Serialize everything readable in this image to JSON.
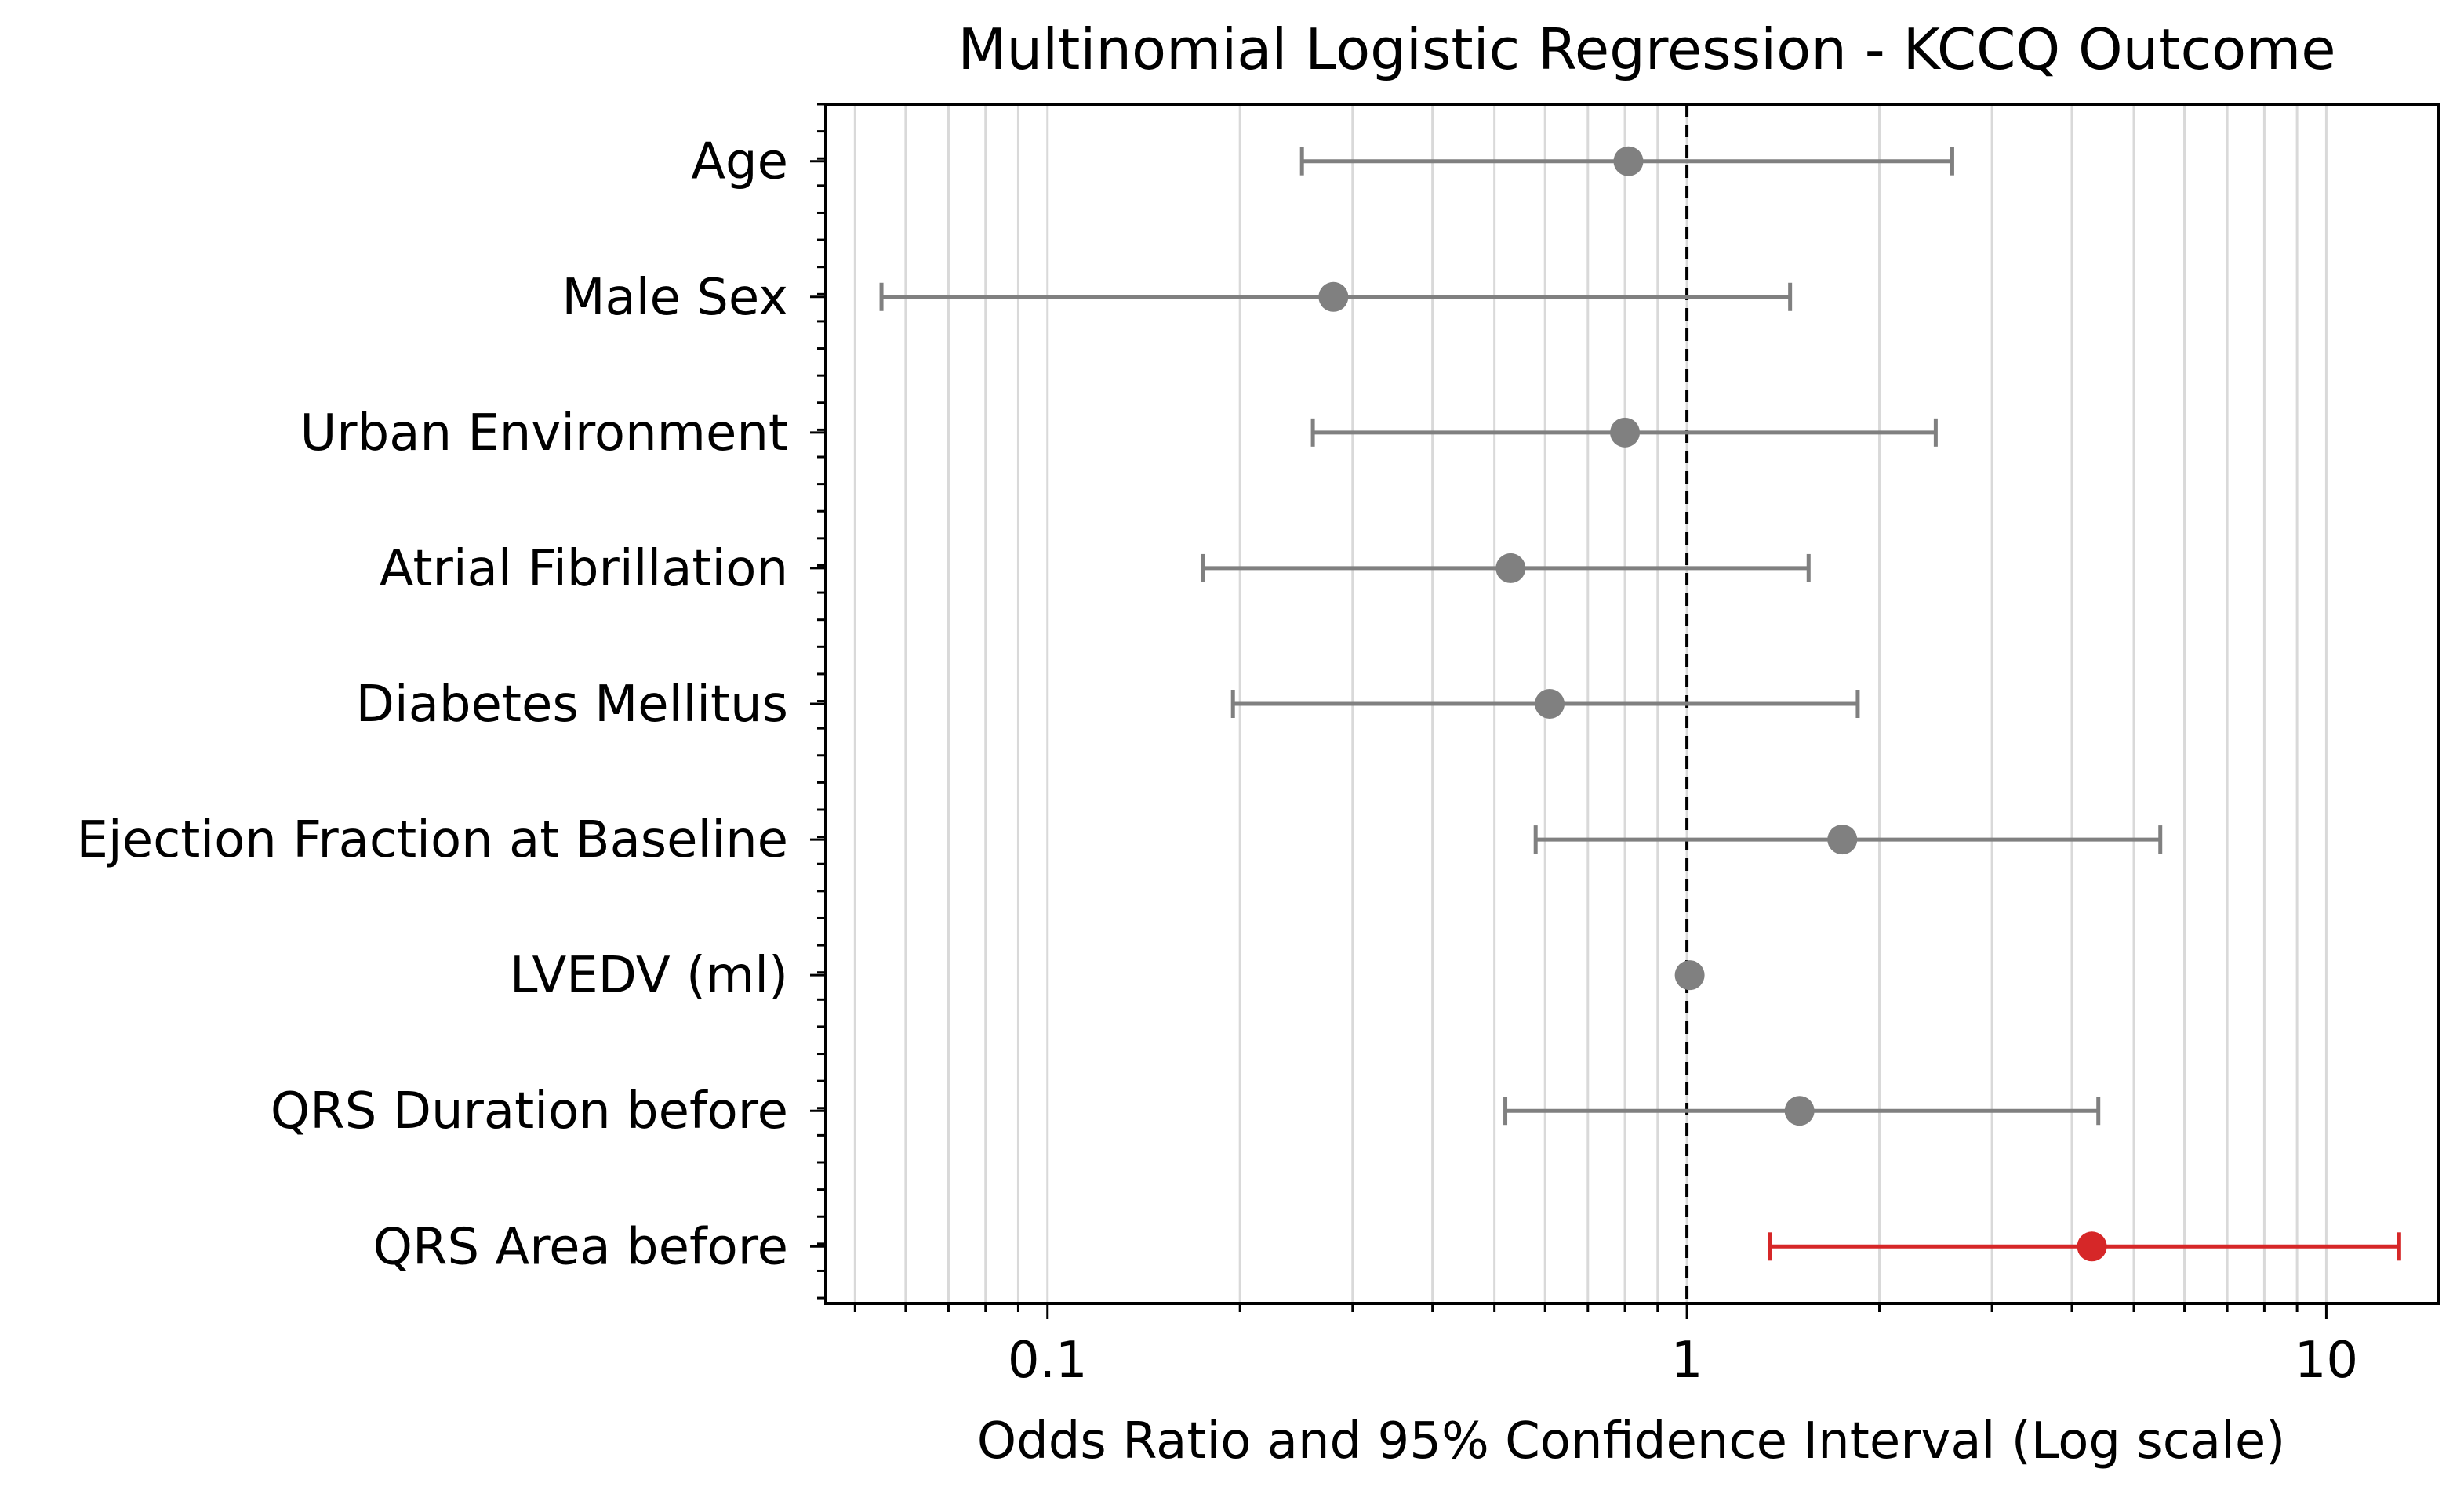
{
  "chart_data": {
    "type": "forest",
    "title": "Multinomial Logistic Regression - KCCQ Outcome",
    "xlabel": "Odds Ratio and 95% Confidence Interval (Log scale)",
    "ylabel": "",
    "xscale": "log",
    "xlim": [
      0.045,
      15
    ],
    "xticks": [
      {
        "value": 0.1,
        "label": "0.1"
      },
      {
        "value": 1,
        "label": "1"
      },
      {
        "value": 10,
        "label": "10"
      }
    ],
    "reference_line": 1,
    "grid": "x-minor",
    "colors": {
      "default": "#808080",
      "highlight": "#d62728",
      "grid": "#d9d9d9"
    },
    "categories": [
      {
        "label": "Age",
        "or": 0.81,
        "lower": 0.25,
        "upper": 2.6,
        "highlight": false
      },
      {
        "label": "Male Sex",
        "or": 0.28,
        "lower": 0.055,
        "upper": 1.45,
        "highlight": false
      },
      {
        "label": "Urban Environment",
        "or": 0.8,
        "lower": 0.26,
        "upper": 2.45,
        "highlight": false
      },
      {
        "label": "Atrial Fibrillation",
        "or": 0.53,
        "lower": 0.175,
        "upper": 1.55,
        "highlight": false
      },
      {
        "label": "Diabetes Mellitus",
        "or": 0.61,
        "lower": 0.195,
        "upper": 1.85,
        "highlight": false
      },
      {
        "label": "Ejection Fraction at Baseline",
        "or": 1.75,
        "lower": 0.58,
        "upper": 5.5,
        "highlight": false
      },
      {
        "label": "LVEDV (ml)",
        "or": 1.01,
        "lower": 1.01,
        "upper": 1.01,
        "highlight": false
      },
      {
        "label": "QRS Duration before",
        "or": 1.5,
        "lower": 0.52,
        "upper": 4.4,
        "highlight": false
      },
      {
        "label": "QRS Area before",
        "or": 4.3,
        "lower": 1.35,
        "upper": 13,
        "highlight": true
      }
    ]
  }
}
